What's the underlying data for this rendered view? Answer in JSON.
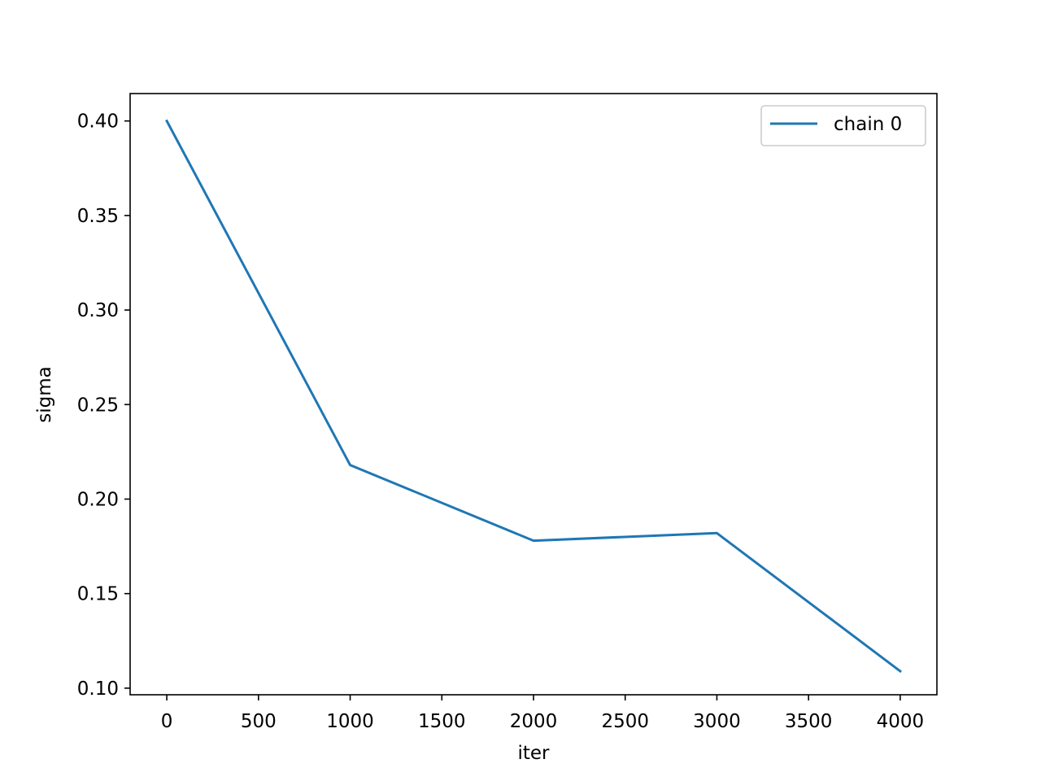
{
  "chart_data": {
    "type": "line",
    "title": "",
    "xlabel": "iter",
    "ylabel": "sigma",
    "xlim": [
      -200,
      4200
    ],
    "ylim": [
      0.0965,
      0.4145
    ],
    "xticks": [
      0,
      500,
      1000,
      1500,
      2000,
      2500,
      3000,
      3500,
      4000
    ],
    "xtick_labels": [
      "0",
      "500",
      "1000",
      "1500",
      "2000",
      "2500",
      "3000",
      "3500",
      "4000"
    ],
    "yticks": [
      0.1,
      0.15,
      0.2,
      0.25,
      0.3,
      0.35,
      0.4
    ],
    "ytick_labels": [
      "0.10",
      "0.15",
      "0.20",
      "0.25",
      "0.30",
      "0.35",
      "0.40"
    ],
    "grid": false,
    "legend_position": "top-right",
    "series": [
      {
        "name": "chain 0",
        "color": "#1f77b4",
        "x": [
          0,
          1000,
          2000,
          3000,
          4000
        ],
        "y": [
          0.4,
          0.218,
          0.178,
          0.182,
          0.109
        ]
      }
    ]
  }
}
